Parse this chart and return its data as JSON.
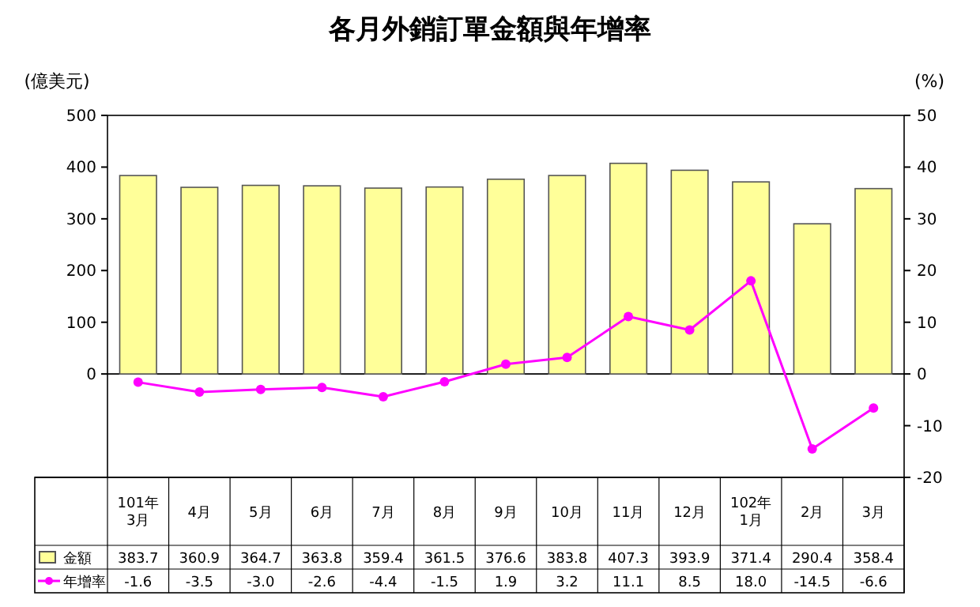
{
  "chart_data": {
    "type": "bar",
    "title": "各月外銷訂單金額與年增率",
    "ylabel": "(億美元)",
    "y2label": "(%)",
    "categories": [
      "101年\n3月",
      "4月",
      "5月",
      "6月",
      "7月",
      "8月",
      "9月",
      "10月",
      "11月",
      "12月",
      "102年\n1月",
      "2月",
      "3月"
    ],
    "series": [
      {
        "name": "金額",
        "color": "#ffff99",
        "values": [
          383.7,
          360.9,
          364.7,
          363.8,
          359.4,
          361.5,
          376.6,
          383.8,
          407.3,
          393.9,
          371.4,
          290.4,
          358.4
        ],
        "value_labels": [
          "383.7",
          "360.9",
          "364.7",
          "363.8",
          "359.4",
          "361.5",
          "376.6",
          "383.8",
          "407.3",
          "393.9",
          "371.4",
          "290.4",
          "358.4"
        ]
      },
      {
        "name": "年增率",
        "type": "line",
        "axis": "y2",
        "color": "#ff00ff",
        "marker": "circle",
        "values": [
          -1.6,
          -3.5,
          -3.0,
          -2.6,
          -4.4,
          -1.5,
          1.9,
          3.2,
          11.1,
          8.5,
          18.0,
          -14.5,
          -6.6
        ],
        "value_labels": [
          "-1.6",
          "-3.5",
          "-3.0",
          "-2.6",
          "-4.4",
          "-1.5",
          "1.9",
          "3.2",
          "11.1",
          "8.5",
          "18.0",
          "-14.5",
          "-6.6"
        ]
      }
    ],
    "ylim": [
      -200,
      500
    ],
    "yticks": [
      0,
      100,
      200,
      300,
      400,
      500
    ],
    "y2lim": [
      -20,
      50
    ],
    "y2ticks": [
      -20,
      -10,
      0,
      10,
      20,
      30,
      40,
      50
    ],
    "legend": "bottom"
  }
}
